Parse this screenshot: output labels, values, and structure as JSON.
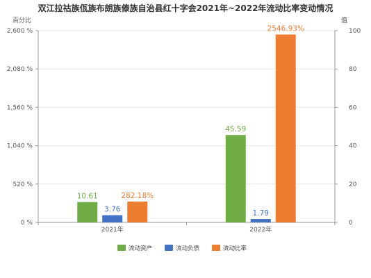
{
  "chart_data": {
    "type": "bar",
    "title": "双江拉祜族佤族布朗族傣族自治县红十字会2021年~2022年流动比率变动情况",
    "left_axis": {
      "label": "百分比",
      "ticks": [
        "0 %",
        "520 %",
        "1,040 %",
        "1,560 %",
        "2,080 %",
        "2,600 %"
      ],
      "ylim": [
        0,
        2600
      ]
    },
    "right_axis": {
      "label": "值",
      "ticks": [
        "0",
        "20",
        "40",
        "60",
        "80",
        "100"
      ],
      "ylim": [
        0,
        100
      ]
    },
    "categories": [
      "2021年",
      "2022年"
    ],
    "series": [
      {
        "name": "流动资产",
        "axis": "right",
        "color": "#70ad47",
        "values": [
          10.61,
          45.59
        ],
        "labels": [
          "10.61",
          "45.59"
        ]
      },
      {
        "name": "流动负债",
        "axis": "right",
        "color": "#4472c4",
        "values": [
          3.76,
          1.79
        ],
        "labels": [
          "3.76",
          "1.79"
        ]
      },
      {
        "name": "流动比率",
        "axis": "left",
        "color": "#ed7d31",
        "values": [
          282.18,
          2546.93
        ],
        "labels": [
          "282.18%",
          "2546.93%"
        ]
      }
    ],
    "grid": true,
    "legend_position": "bottom"
  }
}
